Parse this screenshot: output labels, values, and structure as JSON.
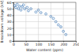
{
  "chart_data": {
    "type": "scatter",
    "x_label": "Water content (ppm)",
    "y_label": "Breakdown voltage (kV)",
    "x": [
      5,
      10,
      15,
      20,
      25,
      30,
      35,
      40,
      45,
      55,
      60,
      70,
      90,
      100,
      110,
      130,
      150,
      160,
      170,
      180,
      190,
      200,
      210
    ],
    "values": [
      55,
      52,
      57,
      50,
      54,
      48,
      53,
      56,
      50,
      52,
      47,
      50,
      45,
      48,
      44,
      42,
      38,
      35,
      30,
      25,
      22,
      15,
      10
    ],
    "color": "#2b6cb0",
    "marker": "circle",
    "xlim": [
      0,
      250
    ],
    "xticks": [
      0,
      50,
      100,
      150,
      200,
      250
    ],
    "ylim": [
      0,
      60
    ],
    "yticks": [
      0,
      10,
      20,
      30,
      40,
      50,
      60
    ],
    "grid": true
  }
}
